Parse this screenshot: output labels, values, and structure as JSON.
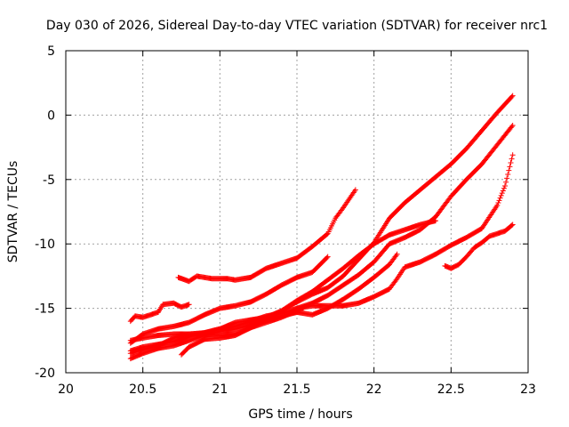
{
  "chart_data": {
    "type": "scatter",
    "title": "Day 030 of 2026, Sidereal Day-to-day VTEC variation (SDTVAR) for receiver nrc1",
    "xlabel": "GPS time / hours",
    "ylabel": "SDTVAR / TECUs",
    "xlim": [
      20,
      23
    ],
    "ylim": [
      -20,
      5
    ],
    "xticks": [
      20,
      20.5,
      21,
      21.5,
      22,
      22.5,
      23
    ],
    "xtick_labels": [
      "20",
      "20.5",
      "21",
      "21.5",
      "22",
      "22.5",
      "23"
    ],
    "yticks": [
      -20,
      -15,
      -10,
      -5,
      0,
      5
    ],
    "ytick_labels": [
      "-20",
      "-15",
      "-10",
      "-5",
      "0",
      "5"
    ],
    "grid": true,
    "marker": "+",
    "color": "#ff0000",
    "series": [
      {
        "name": "s1",
        "points": [
          [
            20.42,
            -16.0
          ],
          [
            20.45,
            -15.6
          ],
          [
            20.5,
            -15.7
          ],
          [
            20.55,
            -15.5
          ],
          [
            20.6,
            -15.3
          ],
          [
            20.63,
            -14.7
          ],
          [
            20.7,
            -14.6
          ],
          [
            20.75,
            -14.9
          ],
          [
            20.8,
            -14.7
          ]
        ]
      },
      {
        "name": "s2",
        "points": [
          [
            20.73,
            -12.6
          ],
          [
            20.8,
            -12.9
          ],
          [
            20.85,
            -12.5
          ],
          [
            20.9,
            -12.6
          ],
          [
            20.95,
            -12.7
          ],
          [
            21.05,
            -12.7
          ],
          [
            21.1,
            -12.8
          ],
          [
            21.2,
            -12.6
          ],
          [
            21.3,
            -11.9
          ],
          [
            21.4,
            -11.5
          ],
          [
            21.5,
            -11.1
          ],
          [
            21.6,
            -10.2
          ],
          [
            21.7,
            -9.2
          ],
          [
            21.75,
            -8.0
          ],
          [
            21.8,
            -7.2
          ],
          [
            21.88,
            -5.8
          ]
        ]
      },
      {
        "name": "s3",
        "points": [
          [
            20.42,
            -17.7
          ],
          [
            20.5,
            -17.0
          ],
          [
            20.6,
            -16.6
          ],
          [
            20.7,
            -16.4
          ],
          [
            20.8,
            -16.1
          ],
          [
            20.9,
            -15.5
          ],
          [
            21.0,
            -15.0
          ],
          [
            21.1,
            -14.8
          ],
          [
            21.2,
            -14.5
          ],
          [
            21.3,
            -13.9
          ],
          [
            21.4,
            -13.2
          ],
          [
            21.5,
            -12.6
          ],
          [
            21.6,
            -12.2
          ],
          [
            21.7,
            -11.0
          ]
        ]
      },
      {
        "name": "s4",
        "points": [
          [
            20.42,
            -18.3
          ],
          [
            20.5,
            -18.0
          ],
          [
            20.6,
            -17.8
          ],
          [
            20.7,
            -17.6
          ],
          [
            20.8,
            -17.2
          ],
          [
            20.9,
            -16.9
          ],
          [
            21.0,
            -16.6
          ],
          [
            21.1,
            -16.1
          ],
          [
            21.2,
            -15.9
          ],
          [
            21.3,
            -15.7
          ],
          [
            21.4,
            -15.2
          ],
          [
            21.5,
            -14.5
          ],
          [
            21.6,
            -13.9
          ],
          [
            21.7,
            -13.4
          ],
          [
            21.8,
            -12.5
          ],
          [
            21.9,
            -11.2
          ],
          [
            22.0,
            -9.9
          ],
          [
            22.1,
            -8.0
          ],
          [
            22.2,
            -6.8
          ],
          [
            22.3,
            -5.8
          ],
          [
            22.4,
            -4.8
          ],
          [
            22.5,
            -3.8
          ],
          [
            22.6,
            -2.6
          ],
          [
            22.7,
            -1.2
          ],
          [
            22.8,
            0.2
          ],
          [
            22.9,
            1.5
          ]
        ]
      },
      {
        "name": "s5",
        "points": [
          [
            20.42,
            -18.9
          ],
          [
            20.5,
            -18.5
          ],
          [
            20.6,
            -18.1
          ],
          [
            20.7,
            -17.9
          ],
          [
            20.8,
            -17.5
          ],
          [
            20.9,
            -17.1
          ],
          [
            21.0,
            -16.8
          ],
          [
            21.1,
            -16.6
          ],
          [
            21.2,
            -16.3
          ],
          [
            21.3,
            -15.8
          ],
          [
            21.4,
            -15.2
          ],
          [
            21.5,
            -14.4
          ],
          [
            21.6,
            -13.7
          ],
          [
            21.7,
            -12.8
          ],
          [
            21.8,
            -11.9
          ],
          [
            21.9,
            -10.9
          ],
          [
            22.0,
            -10.0
          ],
          [
            22.1,
            -9.3
          ],
          [
            22.2,
            -8.9
          ],
          [
            22.3,
            -8.5
          ],
          [
            22.4,
            -8.2
          ]
        ]
      },
      {
        "name": "s6",
        "points": [
          [
            20.42,
            -18.5
          ],
          [
            20.5,
            -18.2
          ],
          [
            20.6,
            -17.9
          ],
          [
            20.7,
            -17.3
          ],
          [
            20.8,
            -17.0
          ],
          [
            20.9,
            -16.9
          ],
          [
            21.0,
            -16.6
          ],
          [
            21.1,
            -16.4
          ],
          [
            21.2,
            -16.0
          ],
          [
            21.3,
            -15.6
          ],
          [
            21.4,
            -15.4
          ],
          [
            21.5,
            -15.0
          ],
          [
            21.6,
            -14.6
          ],
          [
            21.7,
            -14.0
          ],
          [
            21.8,
            -13.2
          ],
          [
            21.9,
            -12.4
          ],
          [
            22.0,
            -11.4
          ],
          [
            22.1,
            -10.0
          ],
          [
            22.2,
            -9.5
          ],
          [
            22.3,
            -8.9
          ],
          [
            22.4,
            -7.9
          ],
          [
            22.5,
            -6.3
          ],
          [
            22.6,
            -5.0
          ],
          [
            22.7,
            -3.8
          ],
          [
            22.8,
            -2.3
          ],
          [
            22.9,
            -0.8
          ]
        ]
      },
      {
        "name": "s7",
        "points": [
          [
            20.75,
            -18.6
          ],
          [
            20.8,
            -18.0
          ],
          [
            20.9,
            -17.4
          ],
          [
            21.0,
            -17.3
          ],
          [
            21.1,
            -17.1
          ],
          [
            21.2,
            -16.5
          ],
          [
            21.3,
            -16.1
          ],
          [
            21.4,
            -15.7
          ],
          [
            21.5,
            -15.2
          ],
          [
            21.55,
            -14.9
          ],
          [
            21.6,
            -14.8
          ],
          [
            21.7,
            -14.8
          ],
          [
            21.8,
            -14.8
          ],
          [
            21.9,
            -14.6
          ],
          [
            22.0,
            -14.1
          ],
          [
            22.1,
            -13.5
          ],
          [
            22.15,
            -12.7
          ],
          [
            22.2,
            -11.8
          ],
          [
            22.3,
            -11.4
          ],
          [
            22.4,
            -10.8
          ],
          [
            22.5,
            -10.1
          ],
          [
            22.6,
            -9.5
          ],
          [
            22.7,
            -8.8
          ],
          [
            22.8,
            -7.0
          ],
          [
            22.85,
            -5.5
          ],
          [
            22.9,
            -3.1
          ]
        ]
      },
      {
        "name": "s8",
        "points": [
          [
            20.42,
            -17.5
          ],
          [
            20.5,
            -17.3
          ],
          [
            20.6,
            -17.1
          ],
          [
            20.7,
            -17.0
          ],
          [
            20.8,
            -17.0
          ],
          [
            20.9,
            -17.0
          ],
          [
            21.0,
            -17.1
          ],
          [
            21.1,
            -17.0
          ],
          [
            21.2,
            -16.5
          ],
          [
            21.3,
            -15.9
          ],
          [
            21.4,
            -15.6
          ],
          [
            21.5,
            -15.3
          ],
          [
            21.6,
            -15.5
          ],
          [
            21.7,
            -15.0
          ],
          [
            21.8,
            -14.3
          ],
          [
            21.9,
            -13.5
          ],
          [
            22.0,
            -12.6
          ],
          [
            22.1,
            -11.6
          ],
          [
            22.15,
            -10.8
          ]
        ]
      },
      {
        "name": "s9",
        "points": [
          [
            22.46,
            -11.7
          ],
          [
            22.5,
            -11.9
          ],
          [
            22.55,
            -11.6
          ],
          [
            22.6,
            -11.0
          ],
          [
            22.65,
            -10.3
          ],
          [
            22.7,
            -9.9
          ],
          [
            22.75,
            -9.4
          ],
          [
            22.8,
            -9.2
          ],
          [
            22.85,
            -9.0
          ],
          [
            22.9,
            -8.5
          ]
        ]
      }
    ]
  }
}
